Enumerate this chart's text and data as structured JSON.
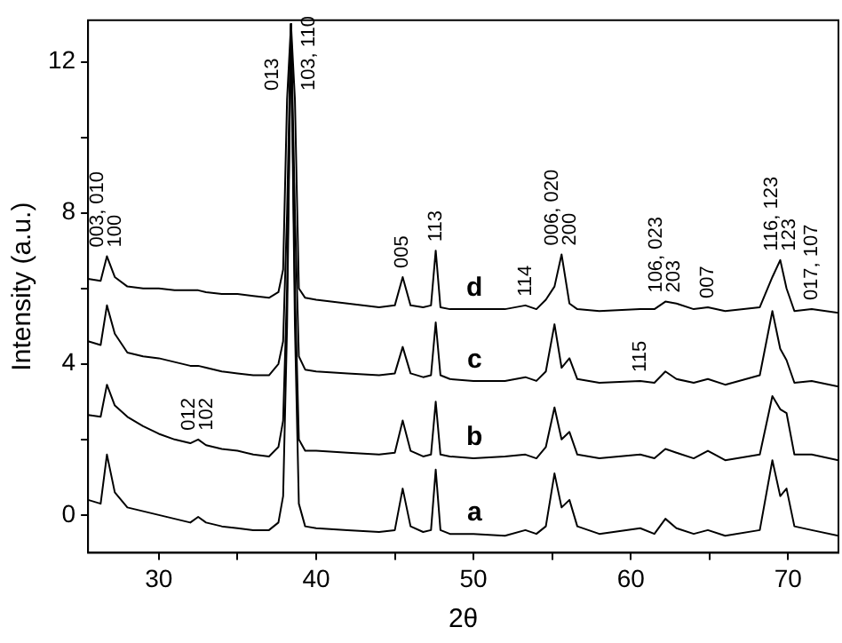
{
  "chart_data": {
    "type": "line",
    "xlabel": "2θ",
    "ylabel": "Intensity (a.u.)",
    "x": [
      25.5,
      26.3,
      26.7,
      27.2,
      28,
      29,
      30,
      31,
      32,
      32.5,
      33,
      34,
      35,
      36,
      37,
      37.6,
      37.9,
      38.15,
      38.4,
      38.65,
      38.9,
      39.3,
      40,
      42,
      44,
      45,
      45.5,
      46,
      46.8,
      47.3,
      47.6,
      47.9,
      48.5,
      50,
      52,
      53.3,
      54,
      54.6,
      55.15,
      55.6,
      56.1,
      56.6,
      58,
      60.6,
      61.5,
      62.2,
      62.9,
      64,
      64.9,
      66,
      68.2,
      69.0,
      69.5,
      69.9,
      70.4,
      71.5,
      73.2
    ],
    "series": [
      {
        "name": "a",
        "color": "#000000",
        "values": [
          0.4,
          0.3,
          1.6,
          0.6,
          0.2,
          0.1,
          0.0,
          -0.1,
          -0.2,
          -0.05,
          -0.2,
          -0.3,
          -0.35,
          -0.4,
          -0.4,
          -0.2,
          0.5,
          5,
          13.0,
          5,
          0.3,
          -0.3,
          -0.35,
          -0.4,
          -0.45,
          -0.4,
          0.7,
          -0.3,
          -0.45,
          -0.4,
          1.2,
          -0.4,
          -0.5,
          -0.5,
          -0.55,
          -0.4,
          -0.5,
          -0.3,
          1.1,
          0.2,
          0.4,
          -0.3,
          -0.5,
          -0.35,
          -0.5,
          -0.1,
          -0.35,
          -0.5,
          -0.4,
          -0.55,
          -0.4,
          1.45,
          0.5,
          0.7,
          -0.3,
          -0.4,
          -0.55
        ]
      },
      {
        "name": "b",
        "color": "#000000",
        "values": [
          2.65,
          2.6,
          3.45,
          2.9,
          2.6,
          2.35,
          2.15,
          2.0,
          1.9,
          2.0,
          1.85,
          1.75,
          1.7,
          1.6,
          1.55,
          1.8,
          2.5,
          6,
          13.0,
          6,
          2.0,
          1.7,
          1.7,
          1.65,
          1.6,
          1.65,
          2.5,
          1.7,
          1.55,
          1.6,
          3.0,
          1.6,
          1.55,
          1.5,
          1.55,
          1.6,
          1.5,
          1.8,
          2.85,
          2.0,
          2.2,
          1.6,
          1.5,
          1.6,
          1.5,
          1.75,
          1.65,
          1.5,
          1.7,
          1.45,
          1.6,
          3.15,
          2.8,
          2.7,
          1.6,
          1.6,
          1.45
        ]
      },
      {
        "name": "c",
        "color": "#000000",
        "values": [
          4.6,
          4.5,
          5.55,
          4.8,
          4.3,
          4.2,
          4.15,
          4.05,
          3.95,
          3.95,
          3.9,
          3.8,
          3.75,
          3.7,
          3.7,
          4.0,
          4.6,
          8,
          13.0,
          8,
          4.2,
          3.85,
          3.8,
          3.75,
          3.7,
          3.75,
          4.45,
          3.75,
          3.65,
          3.7,
          5.1,
          3.7,
          3.6,
          3.55,
          3.55,
          3.65,
          3.55,
          3.8,
          5.05,
          3.9,
          4.15,
          3.6,
          3.5,
          3.55,
          3.5,
          3.8,
          3.6,
          3.5,
          3.6,
          3.45,
          3.7,
          5.4,
          4.4,
          4.1,
          3.5,
          3.55,
          3.4
        ]
      },
      {
        "name": "d",
        "color": "#000000",
        "values": [
          6.25,
          6.2,
          6.85,
          6.3,
          6.05,
          6.0,
          6.0,
          5.95,
          5.95,
          5.95,
          5.9,
          5.85,
          5.85,
          5.8,
          5.75,
          5.9,
          6.5,
          11.0,
          13.0,
          11.0,
          6.0,
          5.75,
          5.7,
          5.6,
          5.5,
          5.55,
          6.3,
          5.55,
          5.5,
          5.55,
          7.0,
          5.5,
          5.45,
          5.45,
          5.45,
          5.55,
          5.45,
          5.7,
          6.05,
          6.9,
          5.6,
          5.45,
          5.4,
          5.45,
          5.45,
          5.65,
          5.6,
          5.45,
          5.5,
          5.4,
          5.5,
          6.3,
          6.75,
          6.0,
          5.4,
          5.45,
          5.35
        ]
      }
    ],
    "xlim": [
      25.5,
      73.2
    ],
    "xticks": [
      30,
      {
        "value": 35,
        "label": null
      },
      40,
      {
        "value": 45,
        "label": null
      },
      50,
      {
        "value": 55,
        "label": null
      },
      60,
      {
        "value": 65,
        "label": null
      },
      70
    ],
    "ylim": [
      -1,
      13.1
    ],
    "yticks": [
      0,
      {
        "value": 2,
        "label": null
      },
      4,
      {
        "value": 6,
        "label": null
      },
      8,
      {
        "value": 10,
        "label": null
      },
      12
    ],
    "legend": false,
    "annotations": [
      {
        "text": "003, 010\n100",
        "x": 26.7,
        "y": 6.85
      },
      {
        "text": "013",
        "x": 38.15,
        "y": 11.0
      },
      {
        "text": "103, 110",
        "x": 38.65,
        "y": 11.0
      },
      {
        "text": "012\n102",
        "x": 32.5,
        "y": 2.0
      },
      {
        "text": "005",
        "x": 45.5,
        "y": 6.3
      },
      {
        "text": "113",
        "x": 47.6,
        "y": 7.0
      },
      {
        "text": "114",
        "x": 53.3,
        "y": 5.55
      },
      {
        "text": "006, 020\n200",
        "x": 55.6,
        "y": 6.9
      },
      {
        "text": "115",
        "x": 60.6,
        "y": 3.55
      },
      {
        "text": "106, 023\n203",
        "x": 62.2,
        "y": 5.65
      },
      {
        "text": "007",
        "x": 64.9,
        "y": 5.5
      },
      {
        "text": "116, 123\n123",
        "x": 69.5,
        "y": 6.75
      },
      {
        "text": "017, 107",
        "x": 71.5,
        "y": 5.45
      }
    ]
  }
}
